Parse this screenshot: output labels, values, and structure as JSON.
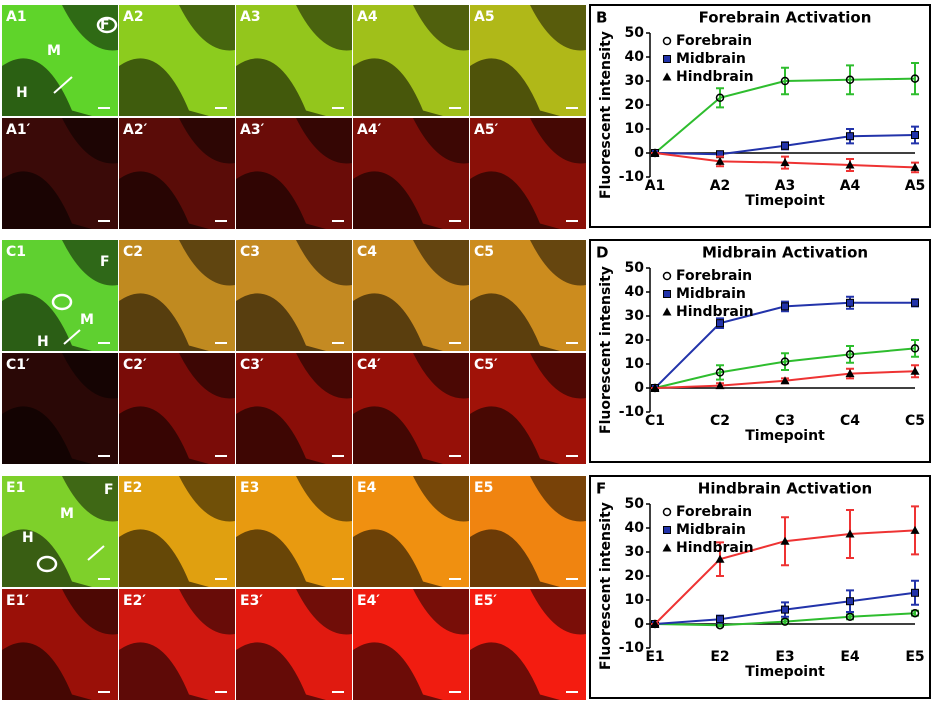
{
  "image_panels": [
    {
      "rows": [
        [
          "A1",
          "A2",
          "A3",
          "A4",
          "A5"
        ],
        [
          "A1′",
          "A2′",
          "A3′",
          "A4′",
          "A5′"
        ]
      ],
      "regions": [
        "F",
        "M",
        "H"
      ]
    },
    {
      "rows": [
        [
          "C1",
          "C2",
          "C3",
          "C4",
          "C5"
        ],
        [
          "C1′",
          "C2′",
          "C3′",
          "C4′",
          "C5′"
        ]
      ],
      "regions": [
        "F",
        "M",
        "H"
      ]
    },
    {
      "rows": [
        [
          "E1",
          "E2",
          "E3",
          "E4",
          "E5"
        ],
        [
          "E1′",
          "E2′",
          "E3′",
          "E4′",
          "E5′"
        ]
      ],
      "regions": [
        "F",
        "M",
        "H"
      ]
    }
  ],
  "chart_data": [
    {
      "type": "line",
      "panel": "B",
      "title": "Forebrain Activation",
      "x_label": "Timepoint",
      "y_label": "Fluorescent intensity",
      "categories": [
        "A1",
        "A2",
        "A3",
        "A4",
        "A5"
      ],
      "ylim": [
        -10,
        50
      ],
      "yticks": [
        -10,
        0,
        10,
        20,
        30,
        40,
        50
      ],
      "legend": "upper left",
      "series": [
        {
          "name": "Forebrain",
          "color": "#2ebd2e",
          "marker": "circle",
          "values": [
            0,
            23,
            30,
            30.5,
            31
          ],
          "errors": [
            0,
            4,
            5.5,
            6,
            6.5
          ]
        },
        {
          "name": "Midbrain",
          "color": "#2233aa",
          "marker": "square",
          "values": [
            0,
            -0.5,
            3,
            7,
            7.5
          ],
          "errors": [
            0,
            1,
            1.5,
            3,
            3.5
          ]
        },
        {
          "name": "Hindbrain",
          "color": "#ee3333",
          "marker": "triangle",
          "values": [
            0,
            -3.5,
            -4,
            -5,
            -6
          ],
          "errors": [
            0,
            2,
            2.5,
            2.5,
            2
          ]
        }
      ]
    },
    {
      "type": "line",
      "panel": "D",
      "title": "Midbrain Activation",
      "x_label": "Timepoint",
      "y_label": "Fluorescent intensity",
      "categories": [
        "C1",
        "C2",
        "C3",
        "C4",
        "C5"
      ],
      "ylim": [
        -10,
        50
      ],
      "yticks": [
        -10,
        0,
        10,
        20,
        30,
        40,
        50
      ],
      "legend": "upper left",
      "series": [
        {
          "name": "Forebrain",
          "color": "#2ebd2e",
          "marker": "circle",
          "values": [
            0,
            6.5,
            11,
            14,
            16.5
          ],
          "errors": [
            0,
            3,
            3.5,
            3.5,
            3.5
          ]
        },
        {
          "name": "Midbrain",
          "color": "#2233aa",
          "marker": "square",
          "values": [
            0,
            27,
            34,
            35.5,
            35.5
          ],
          "errors": [
            0,
            2,
            2,
            2.5,
            1.5
          ]
        },
        {
          "name": "Hindbrain",
          "color": "#ee3333",
          "marker": "triangle",
          "values": [
            0,
            1,
            3,
            6,
            7
          ],
          "errors": [
            0,
            1,
            1,
            2,
            2.5
          ]
        }
      ]
    },
    {
      "type": "line",
      "panel": "F",
      "title": "Hindbrain Activation",
      "x_label": "Timepoint",
      "y_label": "Fluorescent intensity",
      "categories": [
        "E1",
        "E2",
        "E3",
        "E4",
        "E5"
      ],
      "ylim": [
        -10,
        50
      ],
      "yticks": [
        -10,
        0,
        10,
        20,
        30,
        40,
        50
      ],
      "legend": "upper left",
      "series": [
        {
          "name": "Forebrain",
          "color": "#2ebd2e",
          "marker": "circle",
          "values": [
            0,
            -0.5,
            1,
            3,
            4.5
          ],
          "errors": [
            0,
            0.5,
            1,
            1,
            1
          ]
        },
        {
          "name": "Midbrain",
          "color": "#2233aa",
          "marker": "square",
          "values": [
            0,
            2,
            6,
            9.5,
            13
          ],
          "errors": [
            0,
            1.5,
            3,
            4.5,
            5
          ]
        },
        {
          "name": "Hindbrain",
          "color": "#ee3333",
          "marker": "triangle",
          "values": [
            0,
            27,
            34.5,
            37.5,
            39
          ],
          "errors": [
            0,
            7,
            10,
            10,
            10
          ]
        }
      ]
    }
  ]
}
